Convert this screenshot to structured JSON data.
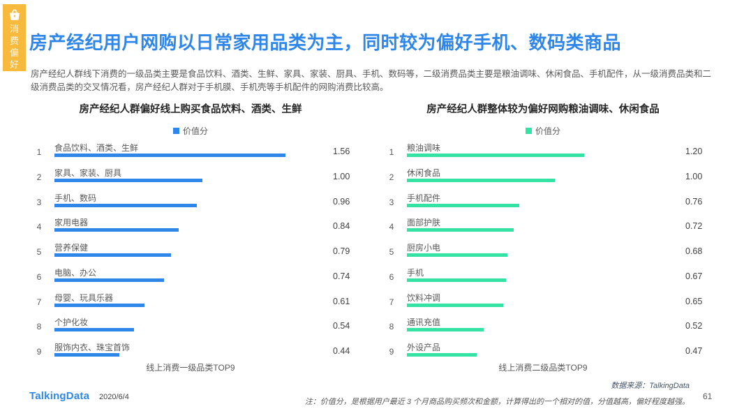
{
  "page": {
    "side_tab": {
      "label": "消费偏好",
      "bg_color": "#F7BA3D"
    },
    "title": "房产经纪用户网购以日常家用品类为主，同时较为偏好手机、数码类商品",
    "title_color": "#2E86E9",
    "intro": "房产经纪人群线下消费的一级品类主要是食品饮料、酒类、生鲜、家具、家装、厨具、手机、数码等，二级消费品类主要是粮油调味、休闲食品、手机配件，从一级消费品类和二级消费品类的交叉情况看，房产经纪人群对于手机膜、手机壳等手机配件的网购消费比较高。",
    "footer": {
      "logo": "TalkingData",
      "date": "2020/6/4",
      "source": "数据来源：TalkingData",
      "note": "注：价值分，是根据用户最近 3 个月商品购买频次和金额，计算得出的一个相对的值，分值越高，偏好程度越强。",
      "page_number": "61"
    }
  },
  "chart_data": [
    {
      "type": "bar",
      "orientation": "horizontal",
      "title": "房产经纪人群偏好线上购买食品饮料、酒类、生鲜",
      "legend": "价值分",
      "caption": "线上消费一级品类TOP9",
      "bar_color": "#2E86E9",
      "xlim": [
        0,
        1.6
      ],
      "categories": [
        "食品饮料、酒类、生鲜",
        "家具、家装、厨具",
        "手机、数码",
        "家用电器",
        "营养保健",
        "电脑、办公",
        "母婴、玩具乐器",
        "个护化妆",
        "服饰内衣、珠宝首饰"
      ],
      "values": [
        1.56,
        1.0,
        0.96,
        0.84,
        0.79,
        0.74,
        0.61,
        0.54,
        0.44
      ]
    },
    {
      "type": "bar",
      "orientation": "horizontal",
      "title": "房产经纪人群整体较为偏好网购粮油调味、休闲食品",
      "legend": "价值分",
      "caption": "线上消费二级品类TOP9",
      "bar_color": "#34E3A4",
      "xlim": [
        0,
        1.6
      ],
      "categories": [
        "粮油调味",
        "休闲食品",
        "手机配件",
        "面部护肤",
        "厨房小电",
        "手机",
        "饮料冲调",
        "通讯充值",
        "外设产品"
      ],
      "values": [
        1.2,
        1.0,
        0.76,
        0.72,
        0.68,
        0.67,
        0.65,
        0.52,
        0.47
      ]
    }
  ]
}
